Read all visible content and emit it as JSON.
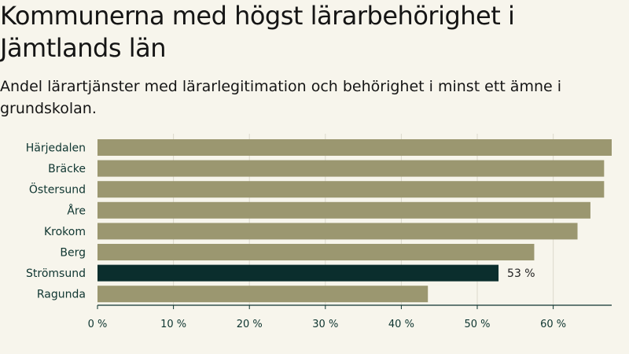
{
  "chart_data": {
    "type": "bar",
    "orientation": "horizontal",
    "title": "Kommunerna med högst lärarbehörighet i Jämtlands län",
    "subtitle": "Andel lärartjänster med lärarlegitimation och behörighet i minst ett ämne i grundskolan.",
    "categories": [
      "Härjedalen",
      "Bräcke",
      "Östersund",
      "Åre",
      "Krokom",
      "Berg",
      "Strömsund",
      "Ragunda"
    ],
    "values": [
      67.7,
      66.7,
      66.7,
      64.9,
      63.2,
      57.5,
      52.8,
      43.5
    ],
    "highlight": {
      "category": "Strömsund",
      "label": "53 %"
    },
    "xticks": [
      0,
      10,
      20,
      30,
      40,
      50,
      60
    ],
    "xtick_labels": [
      "0 %",
      "10 %",
      "20 %",
      "30 %",
      "40 %",
      "50 %",
      "60 %"
    ],
    "xlim": [
      0,
      67.7
    ],
    "grid": true,
    "colors": {
      "bar": "#9b9770",
      "highlight": "#0b2e2d",
      "grid": "#dcd9cc",
      "axis": "#0e3530"
    }
  }
}
